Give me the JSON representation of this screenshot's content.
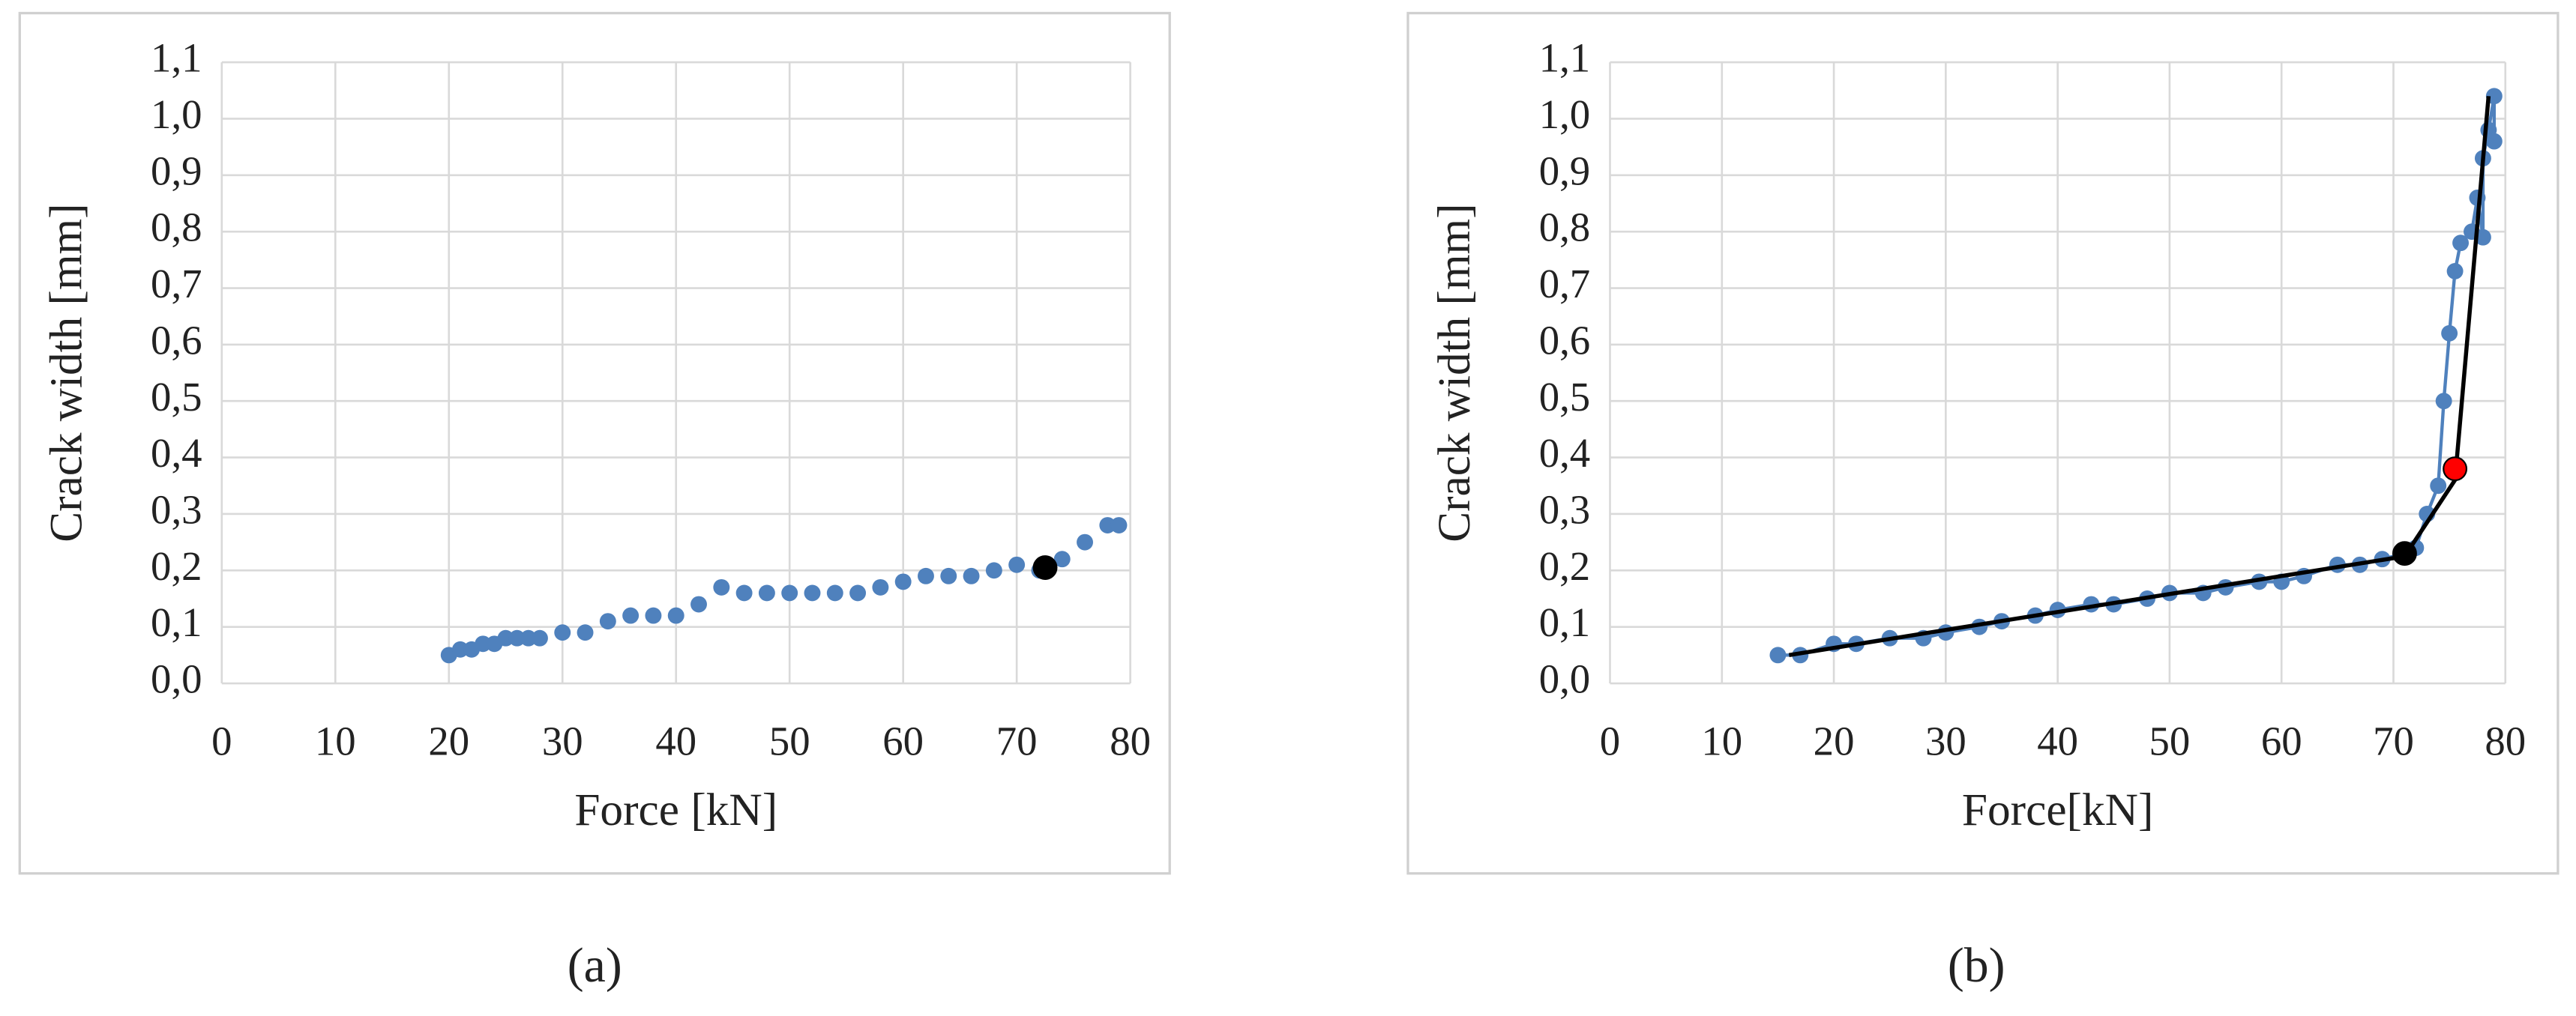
{
  "chart_data": [
    {
      "type": "scatter",
      "caption": "(a)",
      "xlabel": "Force [kN]",
      "ylabel": "Crack width [mm]",
      "xlim": [
        0,
        80
      ],
      "xticks": [
        0,
        10,
        20,
        30,
        40,
        50,
        60,
        70,
        80
      ],
      "ylim": [
        0,
        1.1
      ],
      "yticks": [
        {
          "value": 0,
          "label": "0,0"
        },
        {
          "value": 0.1,
          "label": "0,1"
        },
        {
          "value": 0.2,
          "label": "0,2"
        },
        {
          "value": 0.3,
          "label": "0,3"
        },
        {
          "value": 0.4,
          "label": "0,4"
        },
        {
          "value": 0.5,
          "label": "0,5"
        },
        {
          "value": 0.6,
          "label": "0,6"
        },
        {
          "value": 0.7,
          "label": "0,7"
        },
        {
          "value": 0.8,
          "label": "0,8"
        },
        {
          "value": 0.9,
          "label": "0,9"
        },
        {
          "value": 1.0,
          "label": "1,0"
        },
        {
          "value": 1.1,
          "label": "1,1"
        }
      ],
      "grid": true,
      "series": [
        {
          "color": "#4f81bd",
          "mode": "markers",
          "x": [
            20,
            21,
            22,
            23,
            24,
            25,
            26,
            27,
            28,
            30,
            32,
            34,
            36,
            38,
            40,
            42,
            44,
            46,
            48,
            50,
            52,
            54,
            56,
            58,
            60,
            62,
            64,
            66,
            68,
            70,
            72,
            74,
            76,
            78,
            79
          ],
          "values": [
            0.05,
            0.06,
            0.06,
            0.07,
            0.07,
            0.08,
            0.08,
            0.08,
            0.08,
            0.09,
            0.09,
            0.11,
            0.12,
            0.12,
            0.12,
            0.14,
            0.17,
            0.16,
            0.16,
            0.16,
            0.16,
            0.16,
            0.16,
            0.17,
            0.18,
            0.19,
            0.19,
            0.19,
            0.2,
            0.21,
            0.2,
            0.22,
            0.25,
            0.28,
            0.28
          ]
        },
        {
          "color": "#000000",
          "mode": "markers",
          "x": [
            72.5
          ],
          "values": [
            0.205
          ]
        }
      ]
    },
    {
      "type": "scatter",
      "caption": "(b)",
      "xlabel": "Force[kN]",
      "ylabel": "Crack width [mm]",
      "xlim": [
        0,
        80
      ],
      "xticks": [
        0,
        10,
        20,
        30,
        40,
        50,
        60,
        70,
        80
      ],
      "ylim": [
        0,
        1.1
      ],
      "yticks": [
        {
          "value": 0,
          "label": "0,0"
        },
        {
          "value": 0.1,
          "label": "0,1"
        },
        {
          "value": 0.2,
          "label": "0,2"
        },
        {
          "value": 0.3,
          "label": "0,3"
        },
        {
          "value": 0.4,
          "label": "0,4"
        },
        {
          "value": 0.5,
          "label": "0,5"
        },
        {
          "value": 0.6,
          "label": "0,6"
        },
        {
          "value": 0.7,
          "label": "0,7"
        },
        {
          "value": 0.8,
          "label": "0,8"
        },
        {
          "value": 0.9,
          "label": "0,9"
        },
        {
          "value": 1.0,
          "label": "1,0"
        },
        {
          "value": 1.1,
          "label": "1,1"
        }
      ],
      "grid": true,
      "series": [
        {
          "color": "#4f81bd",
          "mode": "lines+markers",
          "x": [
            15,
            17,
            20,
            22,
            25,
            28,
            30,
            33,
            35,
            38,
            40,
            43,
            45,
            48,
            50,
            53,
            55,
            58,
            60,
            62,
            65,
            67,
            69,
            71,
            72,
            73,
            74,
            74.5,
            75,
            75.5,
            76,
            77,
            77.5,
            78,
            78,
            78.5,
            79,
            79
          ],
          "values": [
            0.05,
            0.05,
            0.07,
            0.07,
            0.08,
            0.08,
            0.09,
            0.1,
            0.11,
            0.12,
            0.13,
            0.14,
            0.14,
            0.15,
            0.16,
            0.16,
            0.17,
            0.18,
            0.18,
            0.19,
            0.21,
            0.21,
            0.22,
            0.23,
            0.24,
            0.3,
            0.35,
            0.5,
            0.62,
            0.73,
            0.78,
            0.8,
            0.86,
            0.79,
            0.93,
            0.98,
            1.04,
            0.96
          ]
        },
        {
          "color": "#000000",
          "mode": "lines",
          "x": [
            16,
            71,
            75.5,
            78.5
          ],
          "values": [
            0.05,
            0.225,
            0.36,
            1.04
          ]
        },
        {
          "color": "#000000",
          "mode": "markers",
          "x": [
            71
          ],
          "values": [
            0.23
          ]
        },
        {
          "color": "#ff0000",
          "mode": "markers",
          "x": [
            75.5
          ],
          "values": [
            0.38
          ]
        }
      ]
    }
  ]
}
